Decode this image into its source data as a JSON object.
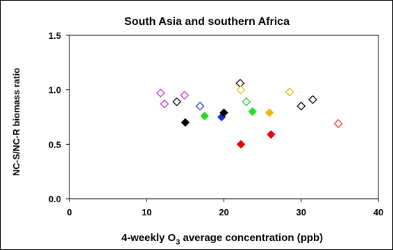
{
  "chart_data": {
    "type": "scatter",
    "title": "South Asia and southern Africa",
    "xlabel_parts": [
      "4-weekly O",
      "3",
      " average concentration (ppb)"
    ],
    "ylabel": "NC-S/NC-R biomass ratio",
    "xlim": [
      0,
      40
    ],
    "ylim": [
      0,
      1.5
    ],
    "xticks": [
      "0",
      "10",
      "20",
      "30",
      "40"
    ],
    "yticks": [
      "0.0",
      "0.5",
      "1.0",
      "1.5"
    ],
    "grid": false,
    "legend": "none",
    "marker": "diamond",
    "points": [
      {
        "x": 11.8,
        "y": 0.97,
        "color": "#cc33cc",
        "filled": false
      },
      {
        "x": 12.3,
        "y": 0.87,
        "color": "#cc33cc",
        "filled": false
      },
      {
        "x": 14.9,
        "y": 0.95,
        "color": "#cc33cc",
        "filled": false
      },
      {
        "x": 13.9,
        "y": 0.89,
        "color": "#000000",
        "filled": false
      },
      {
        "x": 16.9,
        "y": 0.85,
        "color": "#1a3fd6",
        "filled": false
      },
      {
        "x": 22.1,
        "y": 1.06,
        "color": "#000000",
        "filled": false
      },
      {
        "x": 22.2,
        "y": 1.0,
        "color": "#f2b600",
        "filled": false
      },
      {
        "x": 22.9,
        "y": 0.89,
        "color": "#22cc22",
        "filled": false
      },
      {
        "x": 28.5,
        "y": 0.98,
        "color": "#f2b600",
        "filled": false
      },
      {
        "x": 30.0,
        "y": 0.85,
        "color": "#000000",
        "filled": false
      },
      {
        "x": 31.5,
        "y": 0.91,
        "color": "#000000",
        "filled": false
      },
      {
        "x": 34.8,
        "y": 0.69,
        "color": "#e03030",
        "filled": false
      },
      {
        "x": 15.0,
        "y": 0.7,
        "color": "#000000",
        "filled": true
      },
      {
        "x": 17.5,
        "y": 0.76,
        "color": "#22dd22",
        "filled": true
      },
      {
        "x": 19.7,
        "y": 0.75,
        "color": "#1a2fd6",
        "filled": true
      },
      {
        "x": 20.0,
        "y": 0.79,
        "color": "#000000",
        "filled": true
      },
      {
        "x": 22.2,
        "y": 0.5,
        "color": "#ee0000",
        "filled": true
      },
      {
        "x": 23.7,
        "y": 0.8,
        "color": "#22dd22",
        "filled": true
      },
      {
        "x": 25.9,
        "y": 0.79,
        "color": "#f2b600",
        "filled": true
      },
      {
        "x": 26.1,
        "y": 0.59,
        "color": "#ee0000",
        "filled": true
      }
    ]
  }
}
